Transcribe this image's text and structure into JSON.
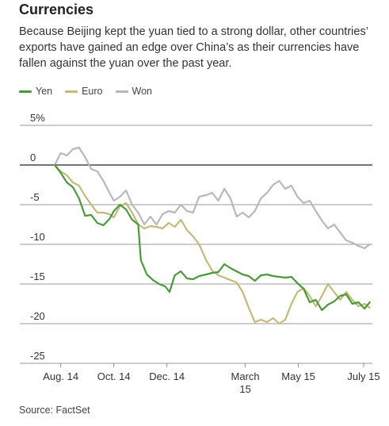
{
  "header": {
    "title": "Currencies",
    "subtitle": "Because Beijing kept the yuan tied to a strong dollar, other countries’ exports have gained an edge over China’s as their currencies have fallen against the yuan over the past year."
  },
  "source": "Source: FactSet",
  "chart_data": {
    "type": "line",
    "ylim": [
      -25,
      5
    ],
    "yticks": [
      5,
      0,
      -5,
      -10,
      -15,
      -20,
      -25
    ],
    "ytick_labels": [
      "5%",
      "0",
      "-5",
      "-10",
      "-15",
      "-20",
      "-25"
    ],
    "xlim": [
      "2014-07-15",
      "2015-07-25"
    ],
    "xticks": [
      {
        "date": "2014-08-01",
        "label": "Aug. 14"
      },
      {
        "date": "2014-10-01",
        "label": "Oct. 14"
      },
      {
        "date": "2014-12-01",
        "label": "Dec. 14"
      },
      {
        "date": "2015-03-01",
        "label": "March 15"
      },
      {
        "date": "2015-05-01",
        "label": "May 15"
      },
      {
        "date": "2015-07-15",
        "label": "July 15"
      }
    ],
    "legend_position": "top-left",
    "series": [
      {
        "name": "Yen",
        "color": "#4a9a3c",
        "points": [
          [
            "2014-07-25",
            0
          ],
          [
            "2014-08-01",
            -1.0
          ],
          [
            "2014-08-08",
            -2.2
          ],
          [
            "2014-08-15",
            -2.8
          ],
          [
            "2014-08-22",
            -4.2
          ],
          [
            "2014-08-29",
            -6.4
          ],
          [
            "2014-09-05",
            -6.3
          ],
          [
            "2014-09-12",
            -7.3
          ],
          [
            "2014-09-19",
            -7.6
          ],
          [
            "2014-09-26",
            -6.8
          ],
          [
            "2014-10-01",
            -5.8
          ],
          [
            "2014-10-08",
            -5.0
          ],
          [
            "2014-10-15",
            -5.6
          ],
          [
            "2014-10-22",
            -6.9
          ],
          [
            "2014-10-29",
            -7.5
          ],
          [
            "2014-11-01",
            -12.0
          ],
          [
            "2014-11-08",
            -13.8
          ],
          [
            "2014-11-15",
            -14.5
          ],
          [
            "2014-11-22",
            -15.0
          ],
          [
            "2014-11-29",
            -15.3
          ],
          [
            "2014-12-04",
            -16.0
          ],
          [
            "2014-12-10",
            -13.9
          ],
          [
            "2014-12-17",
            -13.4
          ],
          [
            "2014-12-24",
            -14.3
          ],
          [
            "2014-12-31",
            -14.4
          ],
          [
            "2015-01-07",
            -14.0
          ],
          [
            "2015-01-15",
            -13.8
          ],
          [
            "2015-01-22",
            -13.6
          ],
          [
            "2015-01-29",
            -13.5
          ],
          [
            "2015-02-05",
            -12.5
          ],
          [
            "2015-02-12",
            -13.0
          ],
          [
            "2015-02-19",
            -13.4
          ],
          [
            "2015-02-26",
            -13.8
          ],
          [
            "2015-03-05",
            -14.0
          ],
          [
            "2015-03-12",
            -14.6
          ],
          [
            "2015-03-19",
            -13.9
          ],
          [
            "2015-03-26",
            -13.8
          ],
          [
            "2015-04-02",
            -14.0
          ],
          [
            "2015-04-09",
            -14.1
          ],
          [
            "2015-04-16",
            -14.2
          ],
          [
            "2015-04-23",
            -14.1
          ],
          [
            "2015-04-30",
            -14.9
          ],
          [
            "2015-05-07",
            -15.6
          ],
          [
            "2015-05-14",
            -17.3
          ],
          [
            "2015-05-21",
            -17.0
          ],
          [
            "2015-05-28",
            -18.3
          ],
          [
            "2015-06-04",
            -17.6
          ],
          [
            "2015-06-11",
            -17.2
          ],
          [
            "2015-06-18",
            -16.5
          ],
          [
            "2015-06-25",
            -16.3
          ],
          [
            "2015-07-02",
            -17.5
          ],
          [
            "2015-07-09",
            -17.3
          ],
          [
            "2015-07-16",
            -18.1
          ],
          [
            "2015-07-22",
            -17.3
          ]
        ]
      },
      {
        "name": "Euro",
        "color": "#c4b97a",
        "points": [
          [
            "2014-07-25",
            0
          ],
          [
            "2014-08-01",
            -0.8
          ],
          [
            "2014-08-08",
            -1.3
          ],
          [
            "2014-08-15",
            -2.2
          ],
          [
            "2014-08-22",
            -2.6
          ],
          [
            "2014-08-29",
            -3.9
          ],
          [
            "2014-09-05",
            -5.0
          ],
          [
            "2014-09-12",
            -6.0
          ],
          [
            "2014-09-19",
            -6.0
          ],
          [
            "2014-09-26",
            -6.2
          ],
          [
            "2014-10-01",
            -6.6
          ],
          [
            "2014-10-08",
            -5.2
          ],
          [
            "2014-10-15",
            -4.8
          ],
          [
            "2014-10-22",
            -6.0
          ],
          [
            "2014-10-29",
            -7.5
          ],
          [
            "2014-11-05",
            -8.0
          ],
          [
            "2014-11-12",
            -7.7
          ],
          [
            "2014-11-19",
            -7.8
          ],
          [
            "2014-11-26",
            -8.0
          ],
          [
            "2014-12-03",
            -7.3
          ],
          [
            "2014-12-10",
            -7.8
          ],
          [
            "2014-12-17",
            -6.9
          ],
          [
            "2014-12-24",
            -8.2
          ],
          [
            "2014-12-31",
            -9.0
          ],
          [
            "2015-01-07",
            -10.0
          ],
          [
            "2015-01-15",
            -12.0
          ],
          [
            "2015-01-22",
            -13.3
          ],
          [
            "2015-01-29",
            -13.9
          ],
          [
            "2015-02-05",
            -14.2
          ],
          [
            "2015-02-12",
            -14.5
          ],
          [
            "2015-02-19",
            -14.8
          ],
          [
            "2015-02-26",
            -16.0
          ],
          [
            "2015-03-05",
            -18.0
          ],
          [
            "2015-03-12",
            -19.8
          ],
          [
            "2015-03-19",
            -19.5
          ],
          [
            "2015-03-26",
            -19.8
          ],
          [
            "2015-04-02",
            -19.3
          ],
          [
            "2015-04-09",
            -20.0
          ],
          [
            "2015-04-16",
            -19.5
          ],
          [
            "2015-04-23",
            -17.5
          ],
          [
            "2015-04-30",
            -16.0
          ],
          [
            "2015-05-07",
            -15.5
          ],
          [
            "2015-05-14",
            -16.5
          ],
          [
            "2015-05-21",
            -17.8
          ],
          [
            "2015-05-28",
            -16.5
          ],
          [
            "2015-06-04",
            -15.0
          ],
          [
            "2015-06-11",
            -16.0
          ],
          [
            "2015-06-18",
            -17.0
          ],
          [
            "2015-06-25",
            -16.0
          ],
          [
            "2015-07-02",
            -17.0
          ],
          [
            "2015-07-09",
            -17.8
          ],
          [
            "2015-07-16",
            -17.5
          ],
          [
            "2015-07-22",
            -18.0
          ]
        ]
      },
      {
        "name": "Won",
        "color": "#b8b8b8",
        "points": [
          [
            "2014-07-25",
            0
          ],
          [
            "2014-08-01",
            1.5
          ],
          [
            "2014-08-08",
            1.2
          ],
          [
            "2014-08-15",
            2.0
          ],
          [
            "2014-08-22",
            2.2
          ],
          [
            "2014-08-29",
            1.0
          ],
          [
            "2014-09-05",
            -0.5
          ],
          [
            "2014-09-12",
            -0.8
          ],
          [
            "2014-09-19",
            -2.0
          ],
          [
            "2014-09-26",
            -3.5
          ],
          [
            "2014-10-01",
            -4.5
          ],
          [
            "2014-10-08",
            -4.0
          ],
          [
            "2014-10-15",
            -3.2
          ],
          [
            "2014-10-22",
            -5.0
          ],
          [
            "2014-10-29",
            -6.0
          ],
          [
            "2014-11-05",
            -7.5
          ],
          [
            "2014-11-12",
            -6.5
          ],
          [
            "2014-11-19",
            -7.5
          ],
          [
            "2014-11-26",
            -6.2
          ],
          [
            "2014-12-03",
            -5.8
          ],
          [
            "2014-12-10",
            -6.0
          ],
          [
            "2014-12-17",
            -5.0
          ],
          [
            "2014-12-24",
            -5.8
          ],
          [
            "2014-12-31",
            -6.0
          ],
          [
            "2015-01-07",
            -4.0
          ],
          [
            "2015-01-15",
            -3.8
          ],
          [
            "2015-01-22",
            -3.5
          ],
          [
            "2015-01-29",
            -4.5
          ],
          [
            "2015-02-05",
            -3.0
          ],
          [
            "2015-02-12",
            -4.2
          ],
          [
            "2015-02-19",
            -6.5
          ],
          [
            "2015-02-26",
            -6.0
          ],
          [
            "2015-03-05",
            -6.6
          ],
          [
            "2015-03-12",
            -5.8
          ],
          [
            "2015-03-19",
            -4.2
          ],
          [
            "2015-03-26",
            -3.5
          ],
          [
            "2015-04-02",
            -2.5
          ],
          [
            "2015-04-09",
            -2.0
          ],
          [
            "2015-04-16",
            -3.0
          ],
          [
            "2015-04-23",
            -2.6
          ],
          [
            "2015-04-30",
            -4.0
          ],
          [
            "2015-05-07",
            -4.8
          ],
          [
            "2015-05-14",
            -4.5
          ],
          [
            "2015-05-21",
            -5.8
          ],
          [
            "2015-05-28",
            -7.0
          ],
          [
            "2015-06-04",
            -8.0
          ],
          [
            "2015-06-11",
            -7.5
          ],
          [
            "2015-06-18",
            -8.5
          ],
          [
            "2015-06-25",
            -9.5
          ],
          [
            "2015-07-02",
            -9.8
          ],
          [
            "2015-07-09",
            -10.2
          ],
          [
            "2015-07-16",
            -10.5
          ],
          [
            "2015-07-22",
            -10.0
          ]
        ]
      }
    ]
  }
}
